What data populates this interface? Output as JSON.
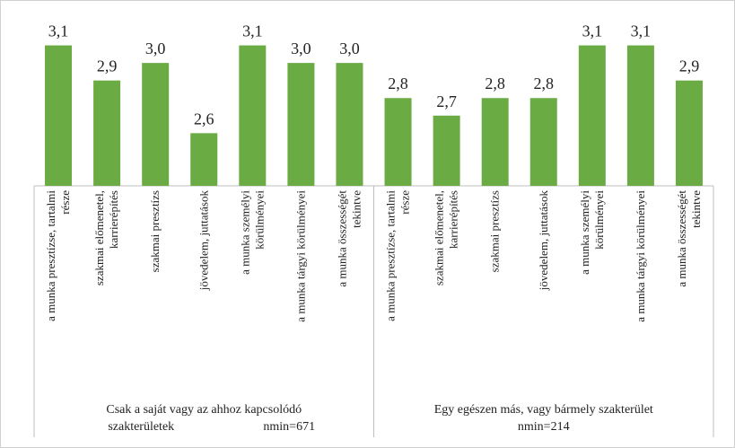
{
  "chart_data": {
    "type": "bar",
    "color": "#6aab44",
    "ylim": [
      2.3,
      3.2
    ],
    "groups": [
      {
        "label": [
          "Csak a saját vagy az ahhoz kapcsolódó",
          "szakterületek"
        ],
        "n": "nmin=671",
        "categories": [
          [
            "a munka presztízse, tartalmi",
            "része"
          ],
          [
            "szakmai előmenetel,",
            "karrierépítés"
          ],
          [
            "szakmai presztízs"
          ],
          [
            "jövedelem, juttatások"
          ],
          [
            "a munka személyi",
            "körülményei"
          ],
          [
            "a munka tárgyi körülményei"
          ],
          [
            "a munka összességét",
            "tekintve"
          ]
        ],
        "values": [
          3.1,
          2.9,
          3.0,
          2.6,
          3.1,
          3.0,
          3.0
        ],
        "value_labels": [
          "3,1",
          "2,9",
          "3,0",
          "2,6",
          "3,1",
          "3,0",
          "3,0"
        ]
      },
      {
        "label": [
          "Egy egészen más, vagy bármely szakterület"
        ],
        "n": "nmin=214",
        "categories": [
          [
            "a munka presztízse, tartalmi",
            "része"
          ],
          [
            "szakmai előmenetel,",
            "karrierépítés"
          ],
          [
            "szakmai presztízs"
          ],
          [
            "jövedelem, juttatások"
          ],
          [
            "a munka személyi",
            "körülményei"
          ],
          [
            "a munka tárgyi körülményei"
          ],
          [
            "a munka összességét",
            "tekintve"
          ]
        ],
        "values": [
          2.8,
          2.7,
          2.8,
          2.8,
          3.1,
          3.1,
          2.9
        ],
        "value_labels": [
          "2,8",
          "2,7",
          "2,8",
          "2,8",
          "3,1",
          "3,1",
          "2,9"
        ]
      }
    ]
  }
}
